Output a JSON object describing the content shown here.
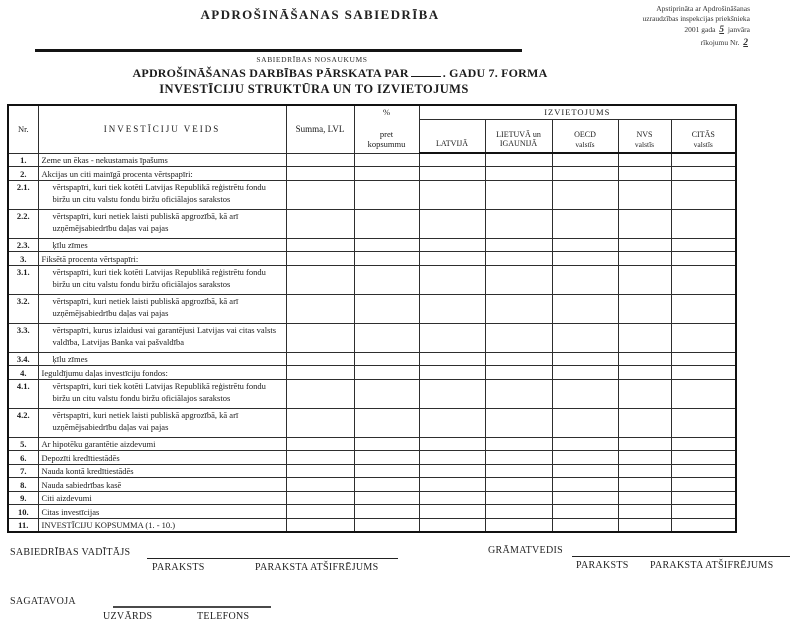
{
  "page": {
    "company_title": "APDROŠINĀŠANAS  SABIEDRĪBA",
    "approval": {
      "line1": "Apstiprināta ar Apdrošināšanas",
      "line2": "uzraudzības inspekcijas priekšnieka",
      "line3_prefix": "2001 gada",
      "line3_value": "5",
      "line3_suffix": "janvāra",
      "line4_prefix": "rīkojumu Nr.",
      "line4_value": "2"
    },
    "company_name_caption": "SABIEDRĪBAS  NOSAUKUMS",
    "form_title_before_blank": "APDROŠINĀŠANAS DARBĪBAS PĀRSKATA PAR",
    "form_title_after_blank": ". GADU 7. FORMA",
    "form_subtitle": "INVESTĪCIJU STRUKTŪRA UN TO IZVIETOJUMS"
  },
  "table": {
    "headers": {
      "nr": "Nr.",
      "investment_type": "INVESTĪCIJU VEIDS",
      "sum": "Summa, LVL",
      "percent": [
        "%",
        "pret",
        "kopsummu"
      ],
      "placement": "IZVIETOJUMS",
      "placement_columns": [
        {
          "line1": "LATVIJĀ",
          "line2": ""
        },
        {
          "line1": "LIETUVĀ un",
          "line2": "IGAUNIJĀ"
        },
        {
          "line1": "OECD",
          "line2": "valstīs"
        },
        {
          "line1": "NVS",
          "line2": "valstīs"
        },
        {
          "line1": "CITĀS",
          "line2": "valstīs"
        }
      ]
    },
    "value_columns_count": 7,
    "rows": [
      {
        "nr": "1.",
        "label": "Zeme un ēkas - nekustamais īpašums",
        "indent": false,
        "tall": false
      },
      {
        "nr": "2.",
        "label": "Akcijas un citi mainīgā procenta vērtspapīri:",
        "indent": false,
        "tall": false
      },
      {
        "nr": "2.1.",
        "label": "vērtspapīri, kuri tiek kotēti Latvijas Republikā reģistrētu fondu biržu un citu valstu fondu biržu oficiālajos sarakstos",
        "indent": true,
        "tall": true
      },
      {
        "nr": "2.2.",
        "label": "vērtspapīri, kuri netiek laisti publiskā apgrozībā, kā arī uzņēmējsabiedrību daļas vai pajas",
        "indent": true,
        "tall": true
      },
      {
        "nr": "2.3.",
        "label": "ķīlu zīmes",
        "indent": true,
        "tall": false
      },
      {
        "nr": "3.",
        "label": "Fiksētā procenta vērtspapīri:",
        "indent": false,
        "tall": false
      },
      {
        "nr": "3.1.",
        "label": "vērtspapīri, kuri tiek kotēti Latvijas Republikā reģistrētu fondu biržu un citu valstu fondu biržu oficiālajos sarakstos",
        "indent": true,
        "tall": true
      },
      {
        "nr": "3.2.",
        "label": "vērtspapīri, kuri netiek laisti publiskā apgrozībā, kā arī uzņēmējsabiedrību daļas vai pajas",
        "indent": true,
        "tall": true
      },
      {
        "nr": "3.3.",
        "label": "vērtspapīri, kurus izlaidusi vai garantējusi Latvijas vai citas valsts valdība, Latvijas Banka vai pašvaldība",
        "indent": true,
        "tall": true
      },
      {
        "nr": "3.4.",
        "label": "ķīlu zīmes",
        "indent": true,
        "tall": false
      },
      {
        "nr": "4.",
        "label": "Ieguldījumu daļas investīciju fondos:",
        "indent": false,
        "tall": false
      },
      {
        "nr": "4.1.",
        "label": "vērtspapīri, kuri tiek kotēti Latvijas Republikā reģistrētu fondu biržu un citu valstu fondu biržu oficiālajos sarakstos",
        "indent": true,
        "tall": true
      },
      {
        "nr": "4.2.",
        "label": "vērtspapīri, kuri netiek laisti publiskā apgrozībā, kā arī uzņēmējsabiedrību daļas vai pajas",
        "indent": true,
        "tall": true
      },
      {
        "nr": "5.",
        "label": "Ar hipotēku garantētie aizdevumi",
        "indent": false,
        "tall": false
      },
      {
        "nr": "6.",
        "label": "Depozīti kredītiestādēs",
        "indent": false,
        "tall": false
      },
      {
        "nr": "7.",
        "label": "Nauda kontā kredītiestādēs",
        "indent": false,
        "tall": false
      },
      {
        "nr": "8.",
        "label": "Nauda sabiedrības kasē",
        "indent": false,
        "tall": false
      },
      {
        "nr": "9.",
        "label": "Citi aizdevumi",
        "indent": false,
        "tall": false
      },
      {
        "nr": "10.",
        "label": "Citas investīcijas",
        "indent": false,
        "tall": false
      },
      {
        "nr": "11.",
        "label": "INVESTĪCIJU KOPSUMMA (1. - 10.)",
        "indent": false,
        "tall": false
      }
    ]
  },
  "footer": {
    "manager_label": "SABIEDRĪBAS VADĪTĀJS",
    "accountant_label": "GRĀMATVEDIS",
    "prepared_label": "SAGATAVOJA",
    "signature_caption": "PARAKSTS",
    "signature_name_caption": "PARAKSTA ATŠIFRĒJUMS",
    "surname_caption": "UZVĀRDS",
    "phone_caption": "TELEFONS"
  }
}
